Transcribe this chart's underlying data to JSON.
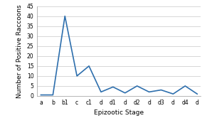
{
  "x_labels": [
    "a",
    "b",
    "b1",
    "c",
    "c1",
    "d",
    "d1",
    "d",
    "d2",
    "d",
    "d3",
    "d",
    "d4",
    "d"
  ],
  "y_values": [
    0.5,
    0.5,
    40,
    10,
    15,
    2,
    4.5,
    1.5,
    5,
    2,
    3,
    1,
    5,
    1
  ],
  "ylim": [
    0,
    45
  ],
  "yticks": [
    0,
    5,
    10,
    15,
    20,
    25,
    30,
    35,
    40,
    45
  ],
  "line_color": "#2e6fad",
  "line_width": 1.2,
  "xlabel": "Epizootic Stage",
  "ylabel": "Number of Positive Raccoons",
  "bg_color": "#ffffff",
  "grid_color": "#c8c8c8",
  "xlabel_fontsize": 6.5,
  "ylabel_fontsize": 6.5,
  "tick_fontsize": 5.5
}
